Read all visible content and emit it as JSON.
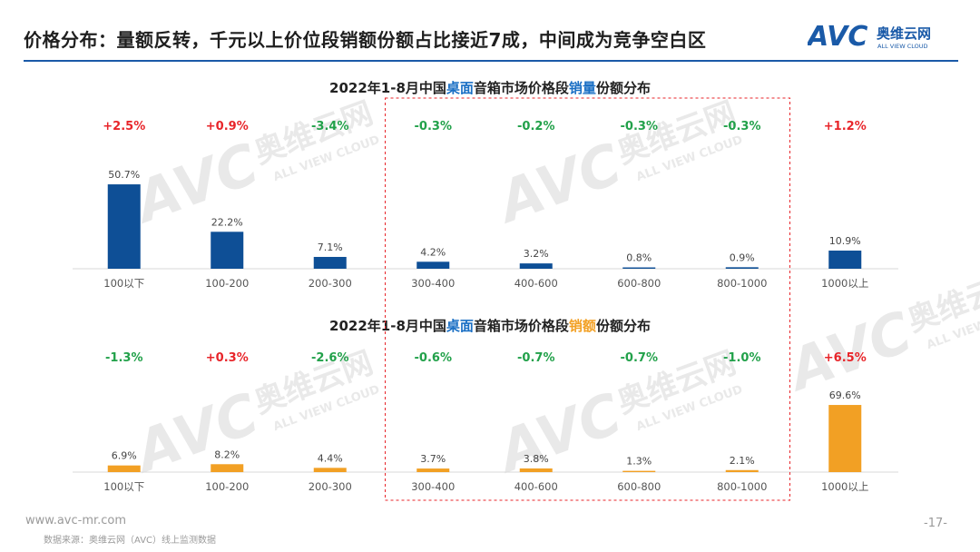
{
  "header": {
    "title": "价格分布：量额反转，千元以上价位段销额份额占比接近7成，中间成为竞争空白区",
    "logo_text": "AVC",
    "logo_cn": "奥维云网",
    "logo_en": "ALL VIEW CLOUD"
  },
  "watermark": {
    "text": "AVC",
    "cn": "奥维云网",
    "en": "ALL VIEW CLOUD"
  },
  "footer": {
    "url": "www.avc-mr.com",
    "source": "数据来源：奥维云网（AVC）线上监测数据",
    "page_number": "-17-"
  },
  "colors": {
    "volume_bar": "#0e4f96",
    "value_bar": "#f2a024",
    "positive_change": "#e8252a",
    "negative_change": "#22a14a",
    "highlight_word_blue": "#1a6fc4",
    "highlight_word_orange": "#f2a024",
    "highlight_box": "#e8252a",
    "header_rule": "#1a5aa8"
  },
  "highlight_box": {
    "from_category": "300-400",
    "to_category": "800-1000",
    "style": "dashed"
  },
  "chart_data": [
    {
      "type": "bar",
      "title_parts": [
        {
          "text": "2022年1-8月中国",
          "color": "#222222"
        },
        {
          "text": "桌面",
          "color": "#1a6fc4"
        },
        {
          "text": "音箱市场价格段",
          "color": "#222222"
        },
        {
          "text": "销量",
          "color": "#1a6fc4"
        },
        {
          "text": "份额分布",
          "color": "#222222"
        }
      ],
      "categories": [
        "100以下",
        "100-200",
        "200-300",
        "300-400",
        "400-600",
        "600-800",
        "800-1000",
        "1000以上"
      ],
      "values": [
        50.7,
        22.2,
        7.1,
        4.2,
        3.2,
        0.8,
        0.9,
        10.9
      ],
      "value_labels": [
        "50.7%",
        "22.2%",
        "7.1%",
        "4.2%",
        "3.2%",
        "0.8%",
        "0.9%",
        "10.9%"
      ],
      "changes": [
        "+2.5%",
        "+0.9%",
        "-3.4%",
        "-0.3%",
        "-0.2%",
        "-0.3%",
        "-0.3%",
        "+1.2%"
      ],
      "bar_color": "#0e4f96",
      "ylim": [
        0,
        60
      ]
    },
    {
      "type": "bar",
      "title_parts": [
        {
          "text": "2022年1-8月中国",
          "color": "#222222"
        },
        {
          "text": "桌面",
          "color": "#1a6fc4"
        },
        {
          "text": "音箱市场价格段",
          "color": "#222222"
        },
        {
          "text": "销额",
          "color": "#f2a024"
        },
        {
          "text": "份额分布",
          "color": "#222222"
        }
      ],
      "categories": [
        "100以下",
        "100-200",
        "200-300",
        "300-400",
        "400-600",
        "600-800",
        "800-1000",
        "1000以上"
      ],
      "values": [
        6.9,
        8.2,
        4.4,
        3.7,
        3.8,
        1.3,
        2.1,
        69.6
      ],
      "value_labels": [
        "6.9%",
        "8.2%",
        "4.4%",
        "3.7%",
        "3.8%",
        "1.3%",
        "2.1%",
        "69.6%"
      ],
      "changes": [
        "-1.3%",
        "+0.3%",
        "-2.6%",
        "-0.6%",
        "-0.7%",
        "-0.7%",
        "-1.0%",
        "+6.5%"
      ],
      "bar_color": "#f2a024",
      "ylim": [
        0,
        80
      ]
    }
  ]
}
